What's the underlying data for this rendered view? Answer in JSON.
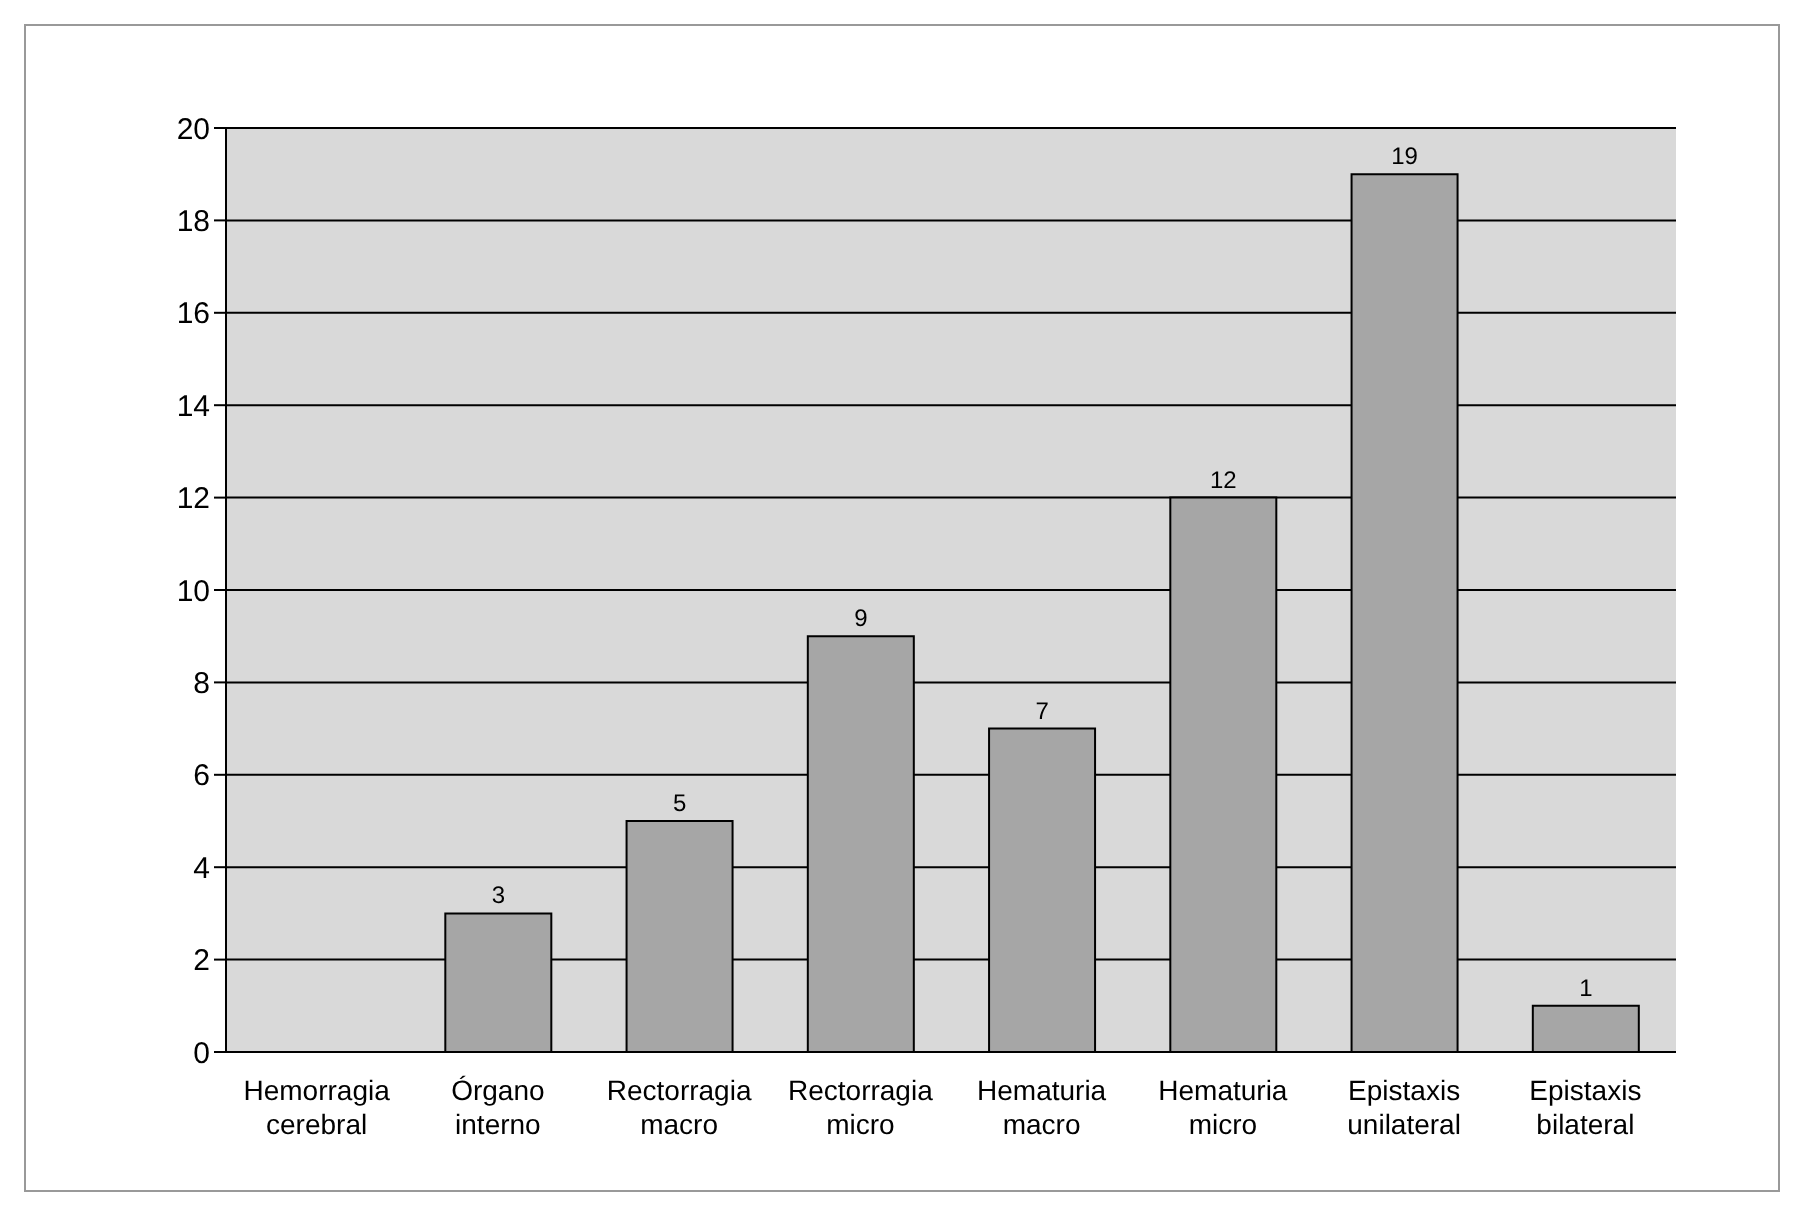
{
  "chart_data": {
    "type": "bar",
    "categories": [
      "Hemorragia cerebral",
      "Órgano interno",
      "Rectorragia macro",
      "Rectorragia micro",
      "Hematuria macro",
      "Hematuria micro",
      "Epistaxis unilateral",
      "Epistaxis bilateral"
    ],
    "values": [
      0,
      3,
      5,
      9,
      7,
      12,
      19,
      1
    ],
    "value_labels": [
      null,
      "3",
      "5",
      "9",
      "7",
      "12",
      "19",
      "1"
    ],
    "color": "#a6a6a6",
    "ylim": [
      0,
      20
    ],
    "yticks": [
      0,
      2,
      4,
      6,
      8,
      10,
      12,
      14,
      16,
      18,
      20
    ],
    "grid": "y"
  }
}
